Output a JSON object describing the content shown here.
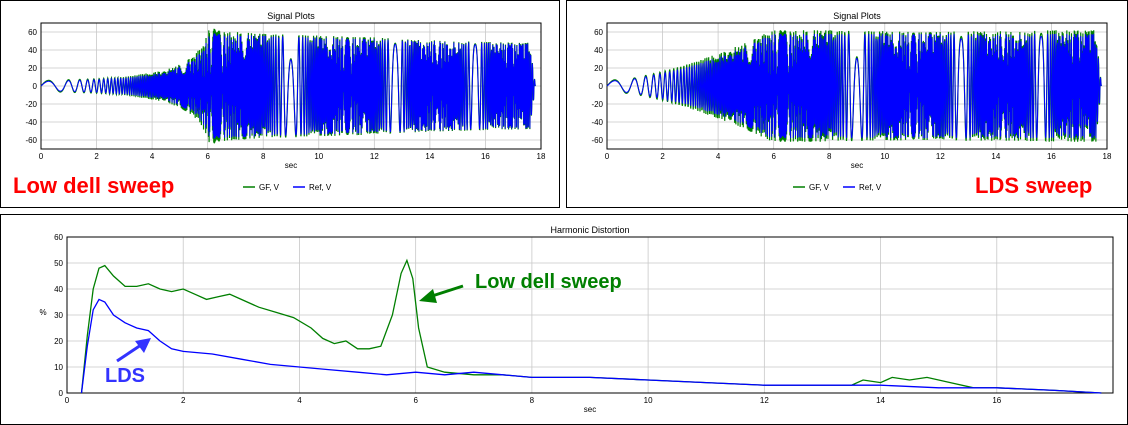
{
  "colors": {
    "green": "#007f00",
    "blue": "#0000ff",
    "red_label": "#ff0000",
    "lds_label": "#3333ff"
  },
  "chart_data": [
    {
      "type": "line",
      "title": "Signal Plots",
      "xlabel": "sec",
      "ylabel": "",
      "xlim": [
        0,
        18
      ],
      "ylim": [
        -70,
        70
      ],
      "xticks": [
        "0",
        "2",
        "4",
        "6",
        "8",
        "10",
        "12",
        "14",
        "16",
        "18"
      ],
      "yticks": [
        "60",
        "40",
        "20",
        "0",
        "-20",
        "-40",
        "-60"
      ],
      "legend": [
        "GF, V",
        "Ref, V"
      ],
      "annotation": "Low dell sweep",
      "series": [
        {
          "name": "GF, V",
          "color": "#007f00",
          "envelope": {
            "t": [
              0,
              1,
              2,
              3,
              4,
              4.5,
              5,
              5.5,
              5.8,
              6.0,
              6.1,
              6.3,
              7,
              8,
              9,
              10,
              11,
              12,
              13,
              14,
              15,
              16,
              17.6,
              17.8
            ],
            "amp": [
              6,
              7,
              8,
              10,
              15,
              18,
              24,
              34,
              45,
              58,
              68,
              62,
              60,
              58,
              57,
              56,
              55,
              54,
              52,
              51,
              50,
              49,
              48,
              0
            ]
          }
        },
        {
          "name": "Ref, V",
          "color": "#0000ff",
          "envelope": {
            "t": [
              0,
              1,
              2,
              3,
              4,
              4.5,
              5,
              5.5,
              5.8,
              6.0,
              6.1,
              6.3,
              7,
              8,
              9,
              10,
              11,
              12,
              13,
              14,
              15,
              16,
              17.6,
              17.8
            ],
            "amp": [
              5,
              6,
              7,
              9,
              13,
              16,
              22,
              30,
              40,
              52,
              60,
              58,
              57,
              56,
              55,
              54,
              53,
              52,
              51,
              50,
              49,
              48,
              47,
              0
            ]
          }
        }
      ]
    },
    {
      "type": "line",
      "title": "Signal Plots",
      "xlabel": "sec",
      "ylabel": "",
      "xlim": [
        0,
        18
      ],
      "ylim": [
        -70,
        70
      ],
      "xticks": [
        "0",
        "2",
        "4",
        "6",
        "8",
        "10",
        "12",
        "14",
        "16",
        "18"
      ],
      "yticks": [
        "60",
        "40",
        "20",
        "0",
        "-20",
        "-40",
        "-60"
      ],
      "legend": [
        "GF, V",
        "Ref, V"
      ],
      "annotation": "LDS sweep",
      "series": [
        {
          "name": "GF, V",
          "color": "#007f00",
          "envelope": {
            "t": [
              0,
              1,
              2,
              3,
              4,
              5,
              5.5,
              5.8,
              6.0,
              7,
              8,
              9,
              10,
              11,
              12,
              13,
              14,
              15,
              16,
              17.6,
              17.8
            ],
            "amp": [
              6,
              9,
              16,
              25,
              36,
              48,
              56,
              60,
              62,
              62,
              62,
              61,
              61,
              60,
              60,
              61,
              61,
              61,
              62,
              62,
              0
            ]
          }
        },
        {
          "name": "Ref, V",
          "color": "#0000ff",
          "envelope": {
            "t": [
              0,
              1,
              2,
              3,
              4,
              5,
              5.5,
              5.8,
              6.0,
              7,
              8,
              9,
              10,
              11,
              12,
              13,
              14,
              15,
              16,
              17.6,
              17.8
            ],
            "amp": [
              5,
              8,
              14,
              22,
              32,
              44,
              52,
              57,
              58,
              58,
              58,
              58,
              58,
              58,
              58,
              58,
              58,
              58,
              58,
              58,
              0
            ]
          }
        }
      ]
    },
    {
      "type": "line",
      "title": "Harmonic Distortion",
      "xlabel": "sec",
      "ylabel": "%",
      "xlim": [
        0,
        18
      ],
      "ylim": [
        0,
        60
      ],
      "xticks": [
        "0",
        "2",
        "4",
        "6",
        "8",
        "10",
        "12",
        "14",
        "16"
      ],
      "yticks": [
        "60",
        "50",
        "40",
        "30",
        "20",
        "10",
        "0"
      ],
      "annotations": [
        "Low dell sweep",
        "LDS"
      ],
      "series": [
        {
          "name": "Low dell sweep",
          "color": "#007f00",
          "x": [
            0.25,
            0.35,
            0.45,
            0.55,
            0.65,
            0.8,
            1.0,
            1.2,
            1.4,
            1.6,
            1.8,
            2.0,
            2.2,
            2.4,
            2.6,
            2.8,
            3.0,
            3.3,
            3.6,
            3.9,
            4.2,
            4.4,
            4.6,
            4.8,
            5.0,
            5.2,
            5.4,
            5.6,
            5.75,
            5.85,
            5.95,
            6.05,
            6.2,
            6.5,
            7.0,
            7.5,
            8.0,
            9.0,
            10.0,
            11.0,
            12.0,
            13.0,
            13.5,
            13.7,
            14.0,
            14.2,
            14.5,
            14.8,
            15.2,
            15.6,
            16.0,
            17.0,
            17.8
          ],
          "y": [
            0,
            22,
            40,
            48,
            49,
            45,
            41,
            41,
            42,
            40,
            39,
            40,
            38,
            36,
            37,
            38,
            36,
            33,
            31,
            29,
            25,
            21,
            19,
            20,
            17,
            17,
            18,
            30,
            46,
            51,
            44,
            25,
            10,
            8,
            7,
            7,
            6,
            6,
            5,
            4,
            3,
            3,
            3,
            5,
            4,
            6,
            5,
            6,
            4,
            2,
            2,
            1,
            0
          ]
        },
        {
          "name": "LDS",
          "color": "#0000ff",
          "x": [
            0.25,
            0.35,
            0.45,
            0.55,
            0.65,
            0.8,
            1.0,
            1.2,
            1.4,
            1.6,
            1.8,
            2.0,
            2.5,
            3.0,
            3.5,
            4.0,
            4.5,
            5.0,
            5.5,
            6.0,
            6.5,
            7.0,
            7.5,
            8.0,
            9.0,
            10.0,
            11.0,
            12.0,
            13.0,
            14.0,
            15.0,
            16.0,
            17.0,
            17.8
          ],
          "y": [
            0,
            18,
            32,
            36,
            35,
            30,
            27,
            25,
            24,
            20,
            17,
            16,
            15,
            13,
            11,
            10,
            9,
            8,
            7,
            8,
            7,
            8,
            7,
            6,
            6,
            5,
            4,
            3,
            3,
            3,
            2,
            2,
            1,
            0
          ]
        }
      ]
    }
  ],
  "labels": {
    "low_dell": "Low dell sweep",
    "lds_sweep": "LDS sweep",
    "low_dell_hd": "Low dell sweep",
    "lds": "LDS"
  }
}
